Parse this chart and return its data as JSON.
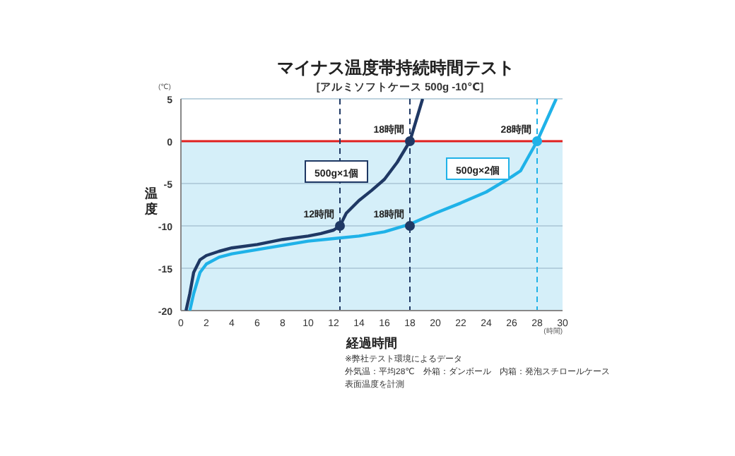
{
  "chart_data": {
    "type": "line",
    "title": "マイナス温度帯持続時間テスト",
    "subtitle": "[アルミソフトケース 500g -10℃]",
    "xlabel": "経過時間",
    "ylabel": "温度",
    "annotations": [
      "(℃)",
      "(時間)",
      "※弊社テスト環境によるデータ",
      "外気温：平均28℃　外箱：ダンボール　内箱：発泡スチロールケース",
      "表面温度を計測",
      {
        "text": "12時間",
        "x": 12.5,
        "y": -10
      },
      {
        "text": "18時間",
        "x": 18,
        "y": 0
      },
      {
        "text": "18時間",
        "x": 18,
        "y": -10
      },
      {
        "text": "28時間",
        "x": 28,
        "y": 0
      }
    ],
    "series": [
      {
        "name": "500g×1個",
        "color": "#1f3864",
        "x": [
          0.4,
          0.7,
          1,
          1.5,
          2,
          3,
          4,
          6,
          8,
          10,
          11,
          12,
          12.5,
          13,
          14,
          15,
          16,
          17,
          18,
          19
        ],
        "values": [
          -20,
          -18,
          -15.5,
          -14,
          -13.5,
          -13,
          -12.6,
          -12.2,
          -11.6,
          -11.2,
          -10.9,
          -10.5,
          -10,
          -8.5,
          -7,
          -5.8,
          -4.5,
          -2.5,
          0,
          5
        ]
      },
      {
        "name": "500g×2個",
        "color": "#1fb2e8",
        "x": [
          0.7,
          1,
          1.5,
          2,
          3,
          4,
          6,
          8,
          10,
          12,
          14,
          16,
          18,
          20,
          22,
          24,
          26,
          26.7,
          28,
          29.2,
          29.5
        ],
        "values": [
          -20,
          -18,
          -15.5,
          -14.5,
          -13.7,
          -13.3,
          -12.8,
          -12.3,
          -11.8,
          -11.5,
          -11.2,
          -10.7,
          -9.8,
          -8.5,
          -7.3,
          -6,
          -4.2,
          -3.5,
          0,
          4,
          5
        ]
      }
    ],
    "xlim": [
      0,
      30
    ],
    "ylim": [
      -20,
      5
    ],
    "xticks": [
      0,
      2,
      4,
      6,
      8,
      10,
      12,
      14,
      16,
      18,
      20,
      22,
      24,
      26,
      28,
      30
    ],
    "yticks": [
      -20,
      -15,
      -10,
      -5,
      0,
      5
    ],
    "grid": "y",
    "marker": "none",
    "line_style": "solid",
    "ref_lines": [
      {
        "axis": "y",
        "value": 0,
        "color": "#e0201f",
        "line_style": "solid"
      },
      {
        "axis": "x",
        "value": 12.5,
        "color": "#1f3864",
        "line_style": "dashed"
      },
      {
        "axis": "x",
        "value": 18,
        "color": "#1f3864",
        "line_style": "dashed"
      },
      {
        "axis": "x",
        "value": 28,
        "color": "#1fb2e8",
        "line_style": "dashed"
      }
    ],
    "bands": [
      {
        "axis": "y",
        "from": -20,
        "to": 0,
        "color": "#d5eff9"
      }
    ]
  }
}
